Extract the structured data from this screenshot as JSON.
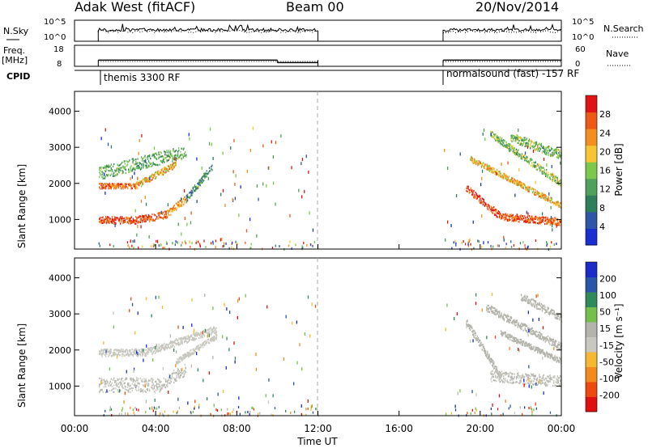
{
  "header": {
    "station": "Adak West (fitACF)",
    "beam": "Beam 00",
    "date": "20/Nov/2014"
  },
  "summary": {
    "nsky_label": "N.Sky",
    "nsearch_label": "N.Search",
    "freq_label_1": "Freq.",
    "freq_label_2": "[MHz]",
    "nave_label": "Nave",
    "cpid_label": "CPID",
    "nsky_ticks": [
      "10^5",
      "10^0"
    ],
    "nsearch_ticks": [
      "10^5",
      "10^0"
    ],
    "freq_ticks": [
      "18",
      "8"
    ],
    "nave_ticks": [
      "60",
      "0"
    ],
    "cpid_1": "themis 3300 RF",
    "cpid_2": "normalsound (fast) -157 RF",
    "operation_intervals_ut_hours": [
      [
        1.17,
        12.0
      ],
      [
        18.17,
        24.0
      ]
    ],
    "freq_mhz_segments": [
      {
        "start": 1.17,
        "end": 10.0,
        "mhz": 12.5
      },
      {
        "start": 10.0,
        "end": 12.0,
        "mhz": 11.3
      },
      {
        "start": 18.17,
        "end": 24.0,
        "mhz": 12.5
      }
    ]
  },
  "colors": {
    "power_scale": [
      "#1a2fd0",
      "#2e55a8",
      "#2d7f5b",
      "#4fa05a",
      "#7bc84a",
      "#f7c531",
      "#f28f1e",
      "#ec5a16",
      "#e01414"
    ],
    "velocity_scale": [
      "#e01010",
      "#ee4a10",
      "#f28a1e",
      "#f6b830",
      "#c8c8c0",
      "#b4b4ac",
      "#74c04a",
      "#2e8a58",
      "#2a56aa",
      "#1b2bc8"
    ],
    "midline": "#aaaaaa"
  },
  "chart_data": [
    {
      "type": "heatmap",
      "title": "Power",
      "xlabel": "Time UT",
      "ylabel": "Slant Range [km]",
      "x_ticks": [
        "00:00",
        "04:00",
        "08:00",
        "12:00",
        "16:00",
        "20:00",
        "00:00"
      ],
      "y_ticks": [
        "1000",
        "2000",
        "3000",
        "4000"
      ],
      "xlim_hours": [
        0,
        24
      ],
      "ylim_km": [
        180,
        4550
      ],
      "colorbar_label": "Power [dB]",
      "colorbar_ticks": [
        "4",
        "8",
        "12",
        "16",
        "20",
        "24",
        "28"
      ],
      "colorbar_range": [
        0,
        30
      ],
      "dashed_line_ut_hours": 12.0,
      "scatter_bands": [
        {
          "t_start": 1.2,
          "t_end": 3.0,
          "r_start": 1000,
          "r_end": 1000,
          "width_km": 200,
          "value": 26
        },
        {
          "t_start": 3.0,
          "t_end": 4.5,
          "r_start": 1000,
          "r_end": 1150,
          "width_km": 200,
          "value": 25
        },
        {
          "t_start": 4.5,
          "t_end": 5.5,
          "r_start": 1150,
          "r_end": 1600,
          "width_km": 200,
          "value": 22
        },
        {
          "t_start": 5.5,
          "t_end": 6.8,
          "r_start": 1600,
          "r_end": 2500,
          "width_km": 200,
          "value": 9
        },
        {
          "t_start": 1.2,
          "t_end": 3.0,
          "r_start": 1950,
          "r_end": 1950,
          "width_km": 150,
          "value": 24
        },
        {
          "t_start": 3.0,
          "t_end": 5.0,
          "r_start": 1950,
          "r_end": 2550,
          "width_km": 180,
          "value": 20
        },
        {
          "t_start": 1.2,
          "t_end": 5.5,
          "r_start": 2300,
          "r_end": 2900,
          "width_km": 350,
          "value": 12
        },
        {
          "t_start": 19.3,
          "t_end": 21.0,
          "r_start": 1900,
          "r_end": 1100,
          "width_km": 200,
          "value": 26
        },
        {
          "t_start": 21.0,
          "t_end": 24.0,
          "r_start": 1100,
          "r_end": 950,
          "width_km": 200,
          "value": 25
        },
        {
          "t_start": 19.5,
          "t_end": 24.0,
          "r_start": 2700,
          "r_end": 1400,
          "width_km": 150,
          "value": 20
        },
        {
          "t_start": 20.5,
          "t_end": 24.0,
          "r_start": 3400,
          "r_end": 2000,
          "width_km": 200,
          "value": 14
        },
        {
          "t_start": 21.5,
          "t_end": 24.0,
          "r_start": 3300,
          "r_end": 2800,
          "width_km": 250,
          "value": 13
        }
      ]
    },
    {
      "type": "heatmap",
      "title": "Velocity",
      "xlabel": "Time UT",
      "ylabel": "Slant Range [km]",
      "x_ticks": [
        "00:00",
        "04:00",
        "08:00",
        "12:00",
        "16:00",
        "20:00",
        "00:00"
      ],
      "y_ticks": [
        "1000",
        "2000",
        "3000",
        "4000"
      ],
      "xlim_hours": [
        0,
        24
      ],
      "ylim_km": [
        180,
        4550
      ],
      "colorbar_label": "Velocity [m s⁻¹]",
      "colorbar_ticks": [
        "-200",
        "-100",
        "-50",
        "-15",
        "15",
        "50",
        "100",
        "200"
      ],
      "colorbar_range": [
        -250,
        250
      ],
      "dashed_line_ut_hours": 12.0,
      "scatter_bands": [
        {
          "t_start": 1.2,
          "t_end": 4.2,
          "r_start": 1050,
          "r_end": 1050,
          "width_km": 400,
          "value": 0
        },
        {
          "t_start": 4.2,
          "t_end": 5.5,
          "r_start": 1050,
          "r_end": 1500,
          "width_km": 350,
          "value": 0
        },
        {
          "t_start": 1.2,
          "t_end": 3.5,
          "r_start": 1950,
          "r_end": 1950,
          "width_km": 200,
          "value": -30
        },
        {
          "t_start": 3.5,
          "t_end": 7.0,
          "r_start": 1950,
          "r_end": 2600,
          "width_km": 200,
          "value": -5
        },
        {
          "t_start": 5.0,
          "t_end": 7.0,
          "r_start": 1700,
          "r_end": 2400,
          "width_km": 150,
          "value": -40
        },
        {
          "t_start": 19.3,
          "t_end": 21.0,
          "r_start": 2800,
          "r_end": 1300,
          "width_km": 200,
          "value": 30
        },
        {
          "t_start": 20.5,
          "t_end": 24.0,
          "r_start": 1300,
          "r_end": 1150,
          "width_km": 300,
          "value": 0
        },
        {
          "t_start": 20.3,
          "t_end": 24.0,
          "r_start": 3200,
          "r_end": 2100,
          "width_km": 200,
          "value": 20
        },
        {
          "t_start": 21.0,
          "t_end": 24.0,
          "r_start": 2500,
          "r_end": 1700,
          "width_km": 150,
          "value": 5
        },
        {
          "t_start": 22.0,
          "t_end": 24.0,
          "r_start": 3500,
          "r_end": 2900,
          "width_km": 200,
          "value": 25
        }
      ]
    }
  ]
}
